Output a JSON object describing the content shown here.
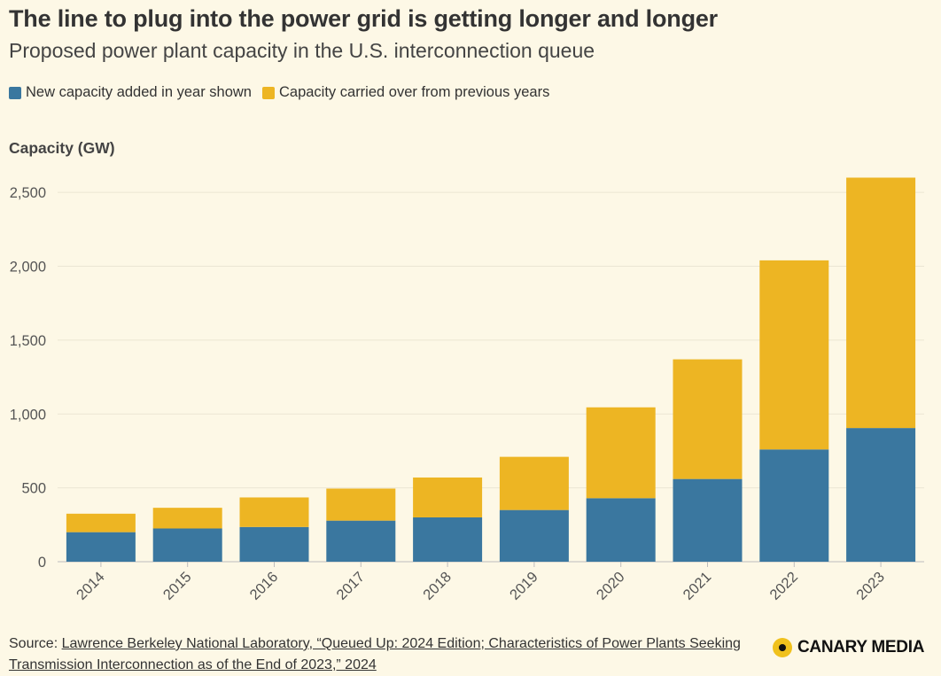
{
  "header": {
    "title": "The line to plug into the power grid is getting longer and longer",
    "subtitle": "Proposed power plant capacity in the U.S. interconnection queue"
  },
  "legend": {
    "items": [
      {
        "label": "New capacity added in year shown",
        "color": "#3a779f"
      },
      {
        "label": "Capacity carried over from previous years",
        "color": "#edb523"
      }
    ]
  },
  "footer": {
    "source_prefix": "Source: ",
    "source_link": "Lawrence Berkeley National Laboratory, “Queued Up: 2024 Edition; Characteristics of Power Plants Seeking Transmission Interconnection as of the End of 2023,” 2024",
    "logo_text": "CANARY MEDIA"
  },
  "chart_data": {
    "type": "bar",
    "stacked": true,
    "ylabel": "Capacity (GW)",
    "ylim": [
      0,
      2600
    ],
    "yticks": [
      0,
      500,
      1000,
      1500,
      2000,
      2500
    ],
    "ytick_labels": [
      "0",
      "500",
      "1,000",
      "1,500",
      "2,000",
      "2,500"
    ],
    "grid": true,
    "categories": [
      "2014",
      "2015",
      "2016",
      "2017",
      "2018",
      "2019",
      "2020",
      "2021",
      "2022",
      "2023"
    ],
    "series": [
      {
        "name": "New capacity added in year shown",
        "color": "#3a779f",
        "values": [
          200,
          225,
          235,
          278,
          300,
          350,
          430,
          560,
          760,
          905
        ]
      },
      {
        "name": "Capacity carried over from previous years",
        "color": "#edb523",
        "values": [
          125,
          140,
          200,
          217,
          270,
          360,
          615,
          810,
          1280,
          1695
        ]
      }
    ]
  }
}
